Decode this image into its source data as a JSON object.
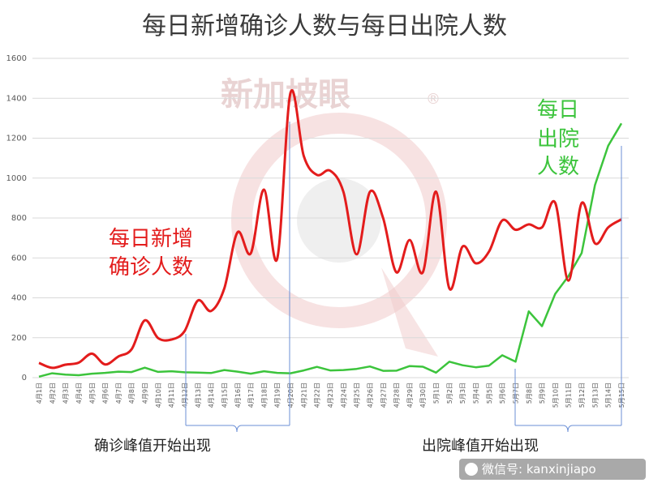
{
  "title": "每日新增确诊人数与每日出院人数",
  "watermark": "新加坡眼",
  "watermark_mark": "®",
  "credit": "微信号: kanxinjiapo",
  "annotations": {
    "confirmed_line1": "每日新增",
    "confirmed_line2": "确诊人数",
    "discharged_line1": "每日",
    "discharged_line2": "出院",
    "discharged_line3": "人数",
    "peak_confirmed": "确诊峰值开始出现",
    "peak_discharged": "出院峰值开始出现"
  },
  "colors": {
    "confirmed": "#e31c1c",
    "discharged": "#3cc43c",
    "bracket": "#6b8fd6",
    "grid": "#d9d9d9",
    "watermark": "#f0caca"
  },
  "chart_data": {
    "type": "line",
    "title": "每日新增确诊人数与每日出院人数",
    "xlabel": "",
    "ylabel": "",
    "ylim": [
      0,
      1600
    ],
    "yticks": [
      0,
      200,
      400,
      600,
      800,
      1000,
      1200,
      1400,
      1600
    ],
    "grid": true,
    "legend": "none",
    "categories": [
      "4月1日",
      "4月2日",
      "4月3日",
      "4月4日",
      "4月5日",
      "4月6日",
      "4月7日",
      "4月8日",
      "4月9日",
      "4月10日",
      "4月11日",
      "4月12日",
      "4月13日",
      "4月14日",
      "4月15日",
      "4月16日",
      "4月17日",
      "4月18日",
      "4月19日",
      "4月20日",
      "4月21日",
      "4月22日",
      "4月23日",
      "4月24日",
      "4月25日",
      "4月26日",
      "4月27日",
      "4月28日",
      "4月29日",
      "4月30日",
      "5月1日",
      "5月2日",
      "5月3日",
      "5月4日",
      "5月5日",
      "5月6日",
      "5月7日",
      "5月8日",
      "5月9日",
      "5月10日",
      "5月11日",
      "5月12日",
      "5月13日",
      "5月14日",
      "5月15日"
    ],
    "series": [
      {
        "name": "每日新增确诊人数",
        "values": [
          74,
          49,
          65,
          75,
          120,
          66,
          106,
          142,
          287,
          198,
          191,
          233,
          386,
          334,
          447,
          728,
          623,
          942,
          596,
          1426,
          1111,
          1016,
          1037,
          931,
          618,
          931,
          799,
          528,
          690,
          528,
          932,
          447,
          657,
          573,
          632,
          788,
          741,
          768,
          753,
          876,
          486,
          875,
          673,
          753,
          793
        ]
      },
      {
        "name": "每日出院人数",
        "values": [
          5,
          22,
          15,
          12,
          20,
          24,
          30,
          28,
          50,
          29,
          32,
          27,
          25,
          23,
          38,
          30,
          20,
          32,
          24,
          22,
          36,
          54,
          36,
          38,
          44,
          56,
          34,
          35,
          58,
          55,
          25,
          80,
          62,
          52,
          60,
          112,
          80,
          332,
          258,
          420,
          509,
          624,
          965,
          1162,
          1274
        ]
      }
    ]
  }
}
